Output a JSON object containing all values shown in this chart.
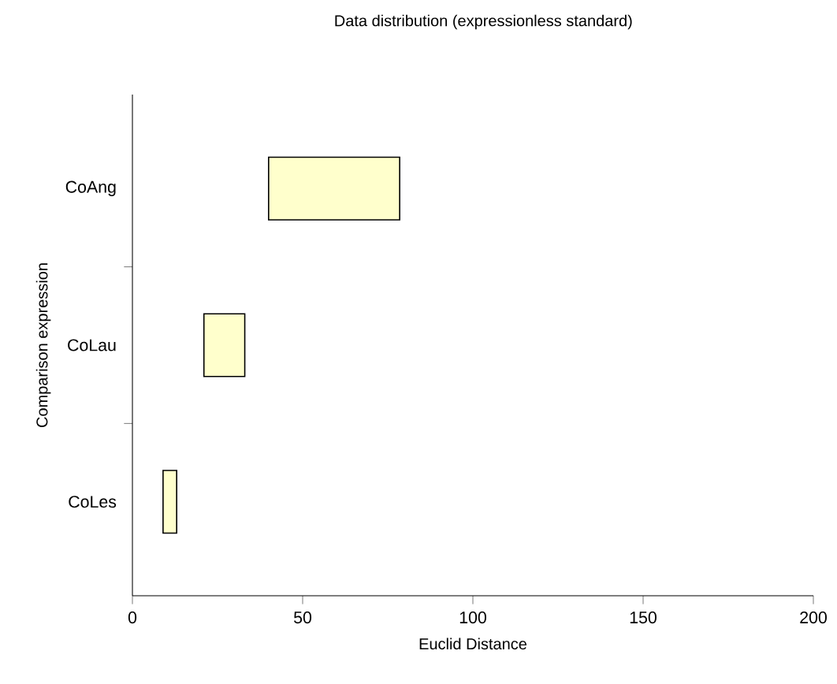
{
  "chart_data": {
    "type": "bar",
    "orientation": "horizontal",
    "title": "Data distribution (expressionless standard)",
    "xlabel": "Euclid  Distance",
    "ylabel": "Comparison expression",
    "categories": [
      "CoAng",
      "CoLau",
      "CoLes"
    ],
    "base": [
      40,
      21,
      9
    ],
    "values": [
      38.5,
      12,
      4
    ],
    "color": "#ffffcc",
    "xlim": [
      0,
      200
    ],
    "xticks": [
      0,
      50,
      100,
      150,
      200
    ]
  }
}
